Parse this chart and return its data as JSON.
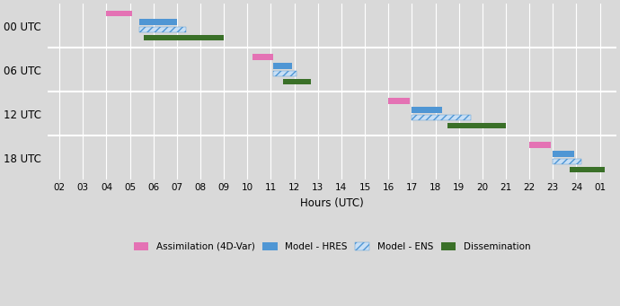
{
  "xlabel": "Hours (UTC)",
  "ytick_labels": [
    "18 UTC",
    "12 UTC",
    "06 UTC",
    "00 UTC"
  ],
  "ytick_positions": [
    0.5,
    1.5,
    2.5,
    3.5
  ],
  "xtick_labels": [
    "02",
    "03",
    "04",
    "05",
    "06",
    "07",
    "08",
    "09",
    "10",
    "11",
    "12",
    "13",
    "14",
    "15",
    "16",
    "17",
    "18",
    "19",
    "20",
    "21",
    "22",
    "23",
    "24",
    "01"
  ],
  "xtick_values": [
    2,
    3,
    4,
    5,
    6,
    7,
    8,
    9,
    10,
    11,
    12,
    13,
    14,
    15,
    16,
    17,
    18,
    19,
    20,
    21,
    22,
    23,
    24,
    25
  ],
  "xlim": [
    1.5,
    25.7
  ],
  "ylim": [
    0,
    4
  ],
  "background_color": "#d9d9d9",
  "colors": {
    "assimilation": "#e472b4",
    "hres": "#4f96d4",
    "ens_face": "#4f96d4",
    "dissemination": "#3a7028"
  },
  "bars": [
    {
      "label": "assimilation",
      "row": 3,
      "start": 4.0,
      "end": 5.1,
      "sub": 0
    },
    {
      "label": "hres",
      "row": 3,
      "start": 5.4,
      "end": 7.0,
      "sub": 1
    },
    {
      "label": "ens",
      "row": 3,
      "start": 5.4,
      "end": 7.4,
      "sub": 2
    },
    {
      "label": "dissemination",
      "row": 3,
      "start": 5.6,
      "end": 9.0,
      "sub": 3
    },
    {
      "label": "assimilation",
      "row": 2,
      "start": 10.2,
      "end": 11.1,
      "sub": 0
    },
    {
      "label": "hres",
      "row": 2,
      "start": 11.1,
      "end": 11.9,
      "sub": 1
    },
    {
      "label": "ens",
      "row": 2,
      "start": 11.1,
      "end": 12.1,
      "sub": 2
    },
    {
      "label": "dissemination",
      "row": 2,
      "start": 11.5,
      "end": 12.7,
      "sub": 3
    },
    {
      "label": "assimilation",
      "row": 1,
      "start": 16.0,
      "end": 16.9,
      "sub": 0
    },
    {
      "label": "hres",
      "row": 1,
      "start": 17.0,
      "end": 18.3,
      "sub": 1
    },
    {
      "label": "ens",
      "row": 1,
      "start": 17.0,
      "end": 19.5,
      "sub": 2
    },
    {
      "label": "dissemination",
      "row": 1,
      "start": 18.5,
      "end": 21.0,
      "sub": 3
    },
    {
      "label": "assimilation",
      "row": 0,
      "start": 22.0,
      "end": 22.9,
      "sub": 0
    },
    {
      "label": "hres",
      "row": 0,
      "start": 23.0,
      "end": 23.9,
      "sub": 1
    },
    {
      "label": "ens",
      "row": 0,
      "start": 23.0,
      "end": 24.2,
      "sub": 2
    },
    {
      "label": "dissemination",
      "row": 0,
      "start": 23.7,
      "end": 25.2,
      "sub": 3
    }
  ],
  "bar_height": 0.13,
  "sub_offsets": [
    0.72,
    0.52,
    0.34,
    0.16
  ],
  "legend_labels": [
    "Assimilation (4D-Var)",
    "Model - HRES",
    "Model - ENS",
    "Dissemination"
  ],
  "legend_colors": [
    "#e472b4",
    "#4f96d4",
    "#4f96d4",
    "#3a7028"
  ],
  "grid_color": "#ffffff",
  "hline_positions": [
    1.0,
    2.0,
    3.0
  ]
}
